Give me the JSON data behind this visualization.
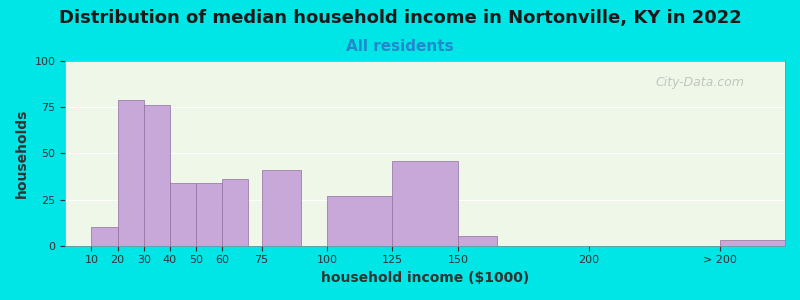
{
  "title": "Distribution of median household income in Nortonville, KY in 2022",
  "subtitle": "All residents",
  "xlabel": "household income ($1000)",
  "ylabel": "households",
  "bar_color": "#c8a8d8",
  "bar_edge_color": "#9070a0",
  "background_color": "#00e5e5",
  "plot_bg_left": "#e8f5e0",
  "plot_bg_right": "#f5f5ff",
  "ylim": [
    0,
    100
  ],
  "yticks": [
    0,
    25,
    50,
    75,
    100
  ],
  "bar_positions": [
    10,
    20,
    30,
    40,
    50,
    60,
    75,
    100,
    125,
    150,
    200,
    250
  ],
  "bar_heights": [
    10,
    79,
    76,
    34,
    34,
    36,
    41,
    27,
    46,
    5,
    0,
    3
  ],
  "bar_widths": [
    10,
    10,
    10,
    10,
    10,
    10,
    15,
    25,
    25,
    15,
    50,
    50
  ],
  "xtick_labels": [
    "10",
    "20",
    "30",
    "40",
    "50",
    "60",
    "75",
    "100",
    "125",
    "150",
    "200",
    "> 200"
  ],
  "xtick_positions": [
    10,
    20,
    30,
    40,
    50,
    60,
    75,
    100,
    125,
    150,
    200,
    250
  ],
  "watermark": "City-Data.com",
  "title_fontsize": 13,
  "subtitle_fontsize": 11,
  "axis_label_fontsize": 10
}
